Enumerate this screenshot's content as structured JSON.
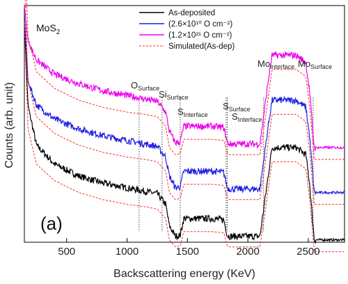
{
  "chart_data": {
    "type": "line",
    "xlabel": "Backscattering energy (KeV)",
    "ylabel": "Counts (arb. unit)",
    "xlim": [
      150,
      2800
    ],
    "ylim": [
      0,
      100
    ],
    "xticks": [
      500,
      1000,
      1500,
      2000,
      2500
    ],
    "grid": false,
    "legend_position": "top-center",
    "panel_label": "(a)",
    "material_label": "MoS",
    "material_subscript": "2",
    "series": [
      {
        "name": "As-deposited",
        "color": "#000000",
        "style": "solid",
        "points": [
          [
            150,
            93
          ],
          [
            180,
            58
          ],
          [
            250,
            41
          ],
          [
            400,
            33
          ],
          [
            600,
            28
          ],
          [
            800,
            25
          ],
          [
            1000,
            23
          ],
          [
            1150,
            21.5
          ],
          [
            1250,
            20.5
          ],
          [
            1320,
            16
          ],
          [
            1350,
            7
          ],
          [
            1400,
            2.5
          ],
          [
            1440,
            3
          ],
          [
            1470,
            10
          ],
          [
            1700,
            10
          ],
          [
            1800,
            9.5
          ],
          [
            1830,
            3
          ],
          [
            1850,
            2.5
          ],
          [
            2100,
            2.5
          ],
          [
            2160,
            25
          ],
          [
            2200,
            40
          ],
          [
            2400,
            40
          ],
          [
            2480,
            37
          ],
          [
            2510,
            25
          ],
          [
            2550,
            1
          ],
          [
            2800,
            1
          ]
        ]
      },
      {
        "name": "(2.6×10¹⁰ O cm⁻²)",
        "color": "#1f1fe0",
        "style": "solid",
        "points": [
          [
            150,
            97
          ],
          [
            180,
            68
          ],
          [
            250,
            58
          ],
          [
            400,
            52
          ],
          [
            600,
            48
          ],
          [
            800,
            45
          ],
          [
            1000,
            43
          ],
          [
            1150,
            41.5
          ],
          [
            1250,
            40.5
          ],
          [
            1320,
            36
          ],
          [
            1350,
            28
          ],
          [
            1400,
            23
          ],
          [
            1440,
            23.5
          ],
          [
            1470,
            30
          ],
          [
            1700,
            30
          ],
          [
            1800,
            29.5
          ],
          [
            1830,
            23
          ],
          [
            1850,
            22.5
          ],
          [
            2100,
            22.5
          ],
          [
            2160,
            46
          ],
          [
            2200,
            60
          ],
          [
            2400,
            60
          ],
          [
            2480,
            57
          ],
          [
            2510,
            45
          ],
          [
            2550,
            21
          ],
          [
            2800,
            21
          ]
        ]
      },
      {
        "name": "(1.2×10²¹ O cm⁻²)",
        "color": "#ee00ee",
        "style": "solid",
        "points": [
          [
            150,
            100
          ],
          [
            180,
            85
          ],
          [
            250,
            77
          ],
          [
            400,
            71
          ],
          [
            600,
            67
          ],
          [
            800,
            64
          ],
          [
            1000,
            62
          ],
          [
            1150,
            60.5
          ],
          [
            1250,
            59.5
          ],
          [
            1320,
            55
          ],
          [
            1350,
            47
          ],
          [
            1400,
            42
          ],
          [
            1440,
            42.5
          ],
          [
            1470,
            49
          ],
          [
            1700,
            49
          ],
          [
            1800,
            48.5
          ],
          [
            1830,
            42
          ],
          [
            1850,
            41.5
          ],
          [
            2100,
            41.5
          ],
          [
            2160,
            65
          ],
          [
            2200,
            79
          ],
          [
            2400,
            79
          ],
          [
            2480,
            76
          ],
          [
            2510,
            64
          ],
          [
            2550,
            40
          ],
          [
            2800,
            40
          ]
        ]
      },
      {
        "name": "Simulated(As-dep)",
        "color": "#ff2a2a",
        "style": "dashed",
        "offsets": [
          -4,
          16,
          35
        ],
        "points": [
          [
            150,
            97
          ],
          [
            180,
            52
          ],
          [
            250,
            37
          ],
          [
            400,
            30
          ],
          [
            600,
            25
          ],
          [
            800,
            22
          ],
          [
            1000,
            20
          ],
          [
            1150,
            19
          ],
          [
            1250,
            18
          ],
          [
            1320,
            14
          ],
          [
            1350,
            5
          ],
          [
            1400,
            2
          ],
          [
            1440,
            2.5
          ],
          [
            1470,
            8.5
          ],
          [
            1700,
            8.5
          ],
          [
            1800,
            8
          ],
          [
            1830,
            2.5
          ],
          [
            1850,
            2
          ],
          [
            2100,
            2
          ],
          [
            2160,
            23
          ],
          [
            2200,
            38
          ],
          [
            2400,
            38
          ],
          [
            2480,
            35
          ],
          [
            2510,
            23
          ],
          [
            2550,
            0
          ],
          [
            2800,
            0
          ]
        ]
      }
    ],
    "annotations": [
      {
        "main": "O",
        "sub": "Surface",
        "x": 1100
      },
      {
        "main": "Si",
        "sub": "Surface",
        "x": 1290
      },
      {
        "main": "S",
        "sub": "Interface",
        "x": 1440
      },
      {
        "main": "S",
        "sub": "Surface",
        "x": 1820
      },
      {
        "main": "S",
        "sub": "Interface",
        "x": 1830
      },
      {
        "main": "Mo",
        "sub": "Interface",
        "x": 2130
      },
      {
        "main": "Mo",
        "sub": "Surface",
        "x": 2540
      }
    ]
  }
}
